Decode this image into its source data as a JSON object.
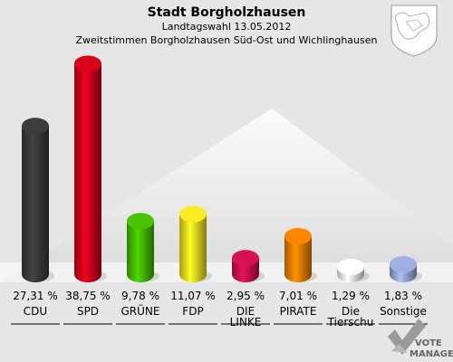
{
  "chart_data": {
    "type": "bar",
    "title": "Stadt Borgholzhausen",
    "subtitle_1": "Landtagswahl 13.05.2012",
    "subtitle_2": "Zweitstimmen Borgholzhausen Süd-Ost und Wichlinghausen",
    "categories": [
      "CDU",
      "SPD",
      "GRÜNE",
      "FDP",
      "DIE\nLINKE",
      "PIRATE",
      "Die\nTierschu",
      "Sonstige"
    ],
    "values": [
      27.31,
      38.75,
      9.78,
      11.07,
      2.95,
      7.01,
      1.29,
      1.83
    ],
    "value_labels": [
      "27,31 %",
      "38,75 %",
      "9,78 %",
      "11,07 %",
      "2,95 %",
      "7,01 %",
      "1,29 %",
      "1,83 %"
    ],
    "colors": [
      "#3a3a3a",
      "#d0001a",
      "#44bb00",
      "#f0e020",
      "#cc1050",
      "#f08000",
      "#f4f4f4",
      "#98a8d8"
    ],
    "ylim": [
      0,
      40
    ],
    "grid": false,
    "legend": "none"
  },
  "logo": {
    "line1": "VOTE",
    "line2": "MANAGER",
    "icon": "crest-icon"
  }
}
